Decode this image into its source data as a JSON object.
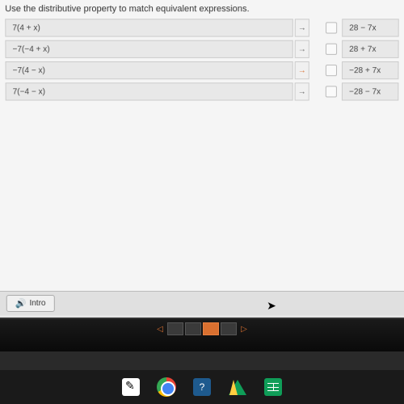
{
  "instruction": "Use the distributive property to match equivalent expressions.",
  "left_expressions": [
    {
      "text": "7(4 + x)",
      "arrow_color": "#888"
    },
    {
      "text": "−7(−4 + x)",
      "arrow_color": "#888"
    },
    {
      "text": "−7(4 − x)",
      "arrow_color": "#d97030"
    },
    {
      "text": "7(−4 − x)",
      "arrow_color": "#888"
    }
  ],
  "right_expressions": [
    {
      "text": "28 − 7x"
    },
    {
      "text": "28 + 7x"
    },
    {
      "text": "−28 + 7x"
    },
    {
      "text": "−28 − 7x"
    }
  ],
  "intro_label": "Intro",
  "colors": {
    "box_bg": "#e8e8e8",
    "box_border": "#cccccc",
    "accent": "#d97030",
    "screen_bg": "#e8e8e8",
    "dark_bg": "#1a1a1a"
  },
  "nav": {
    "thumbs": 4,
    "active_index": 2
  }
}
